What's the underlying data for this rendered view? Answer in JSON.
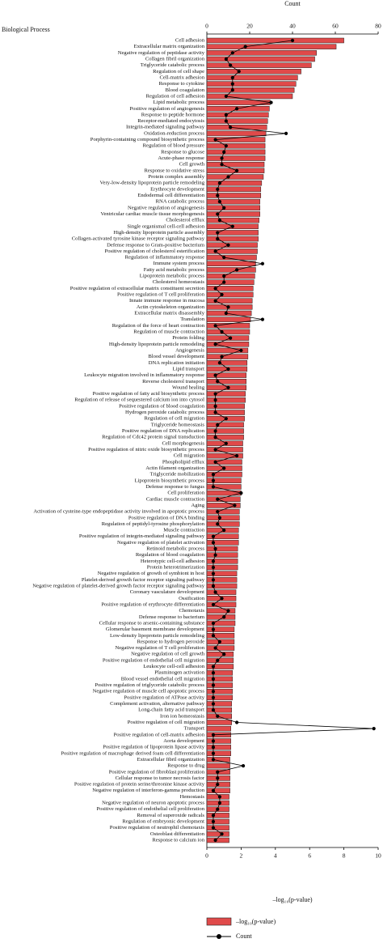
{
  "chart_data": {
    "type": "bar",
    "orientation": "horizontal",
    "ylabel": "Biological Process",
    "xlabel": "–log₁₀(p-value)",
    "x2label": "Count",
    "categories": [
      "Cell adhesion",
      "Extracellular matrix organization",
      "Negative regulation of peptidase activity",
      "Collagen fibril organization",
      "Triglyceride catabolic process",
      "Regulation of cell shape",
      "Cell-matrix adhesion",
      "Response to cytokine",
      "Blood coagulation",
      "Regulation of cell adhesion",
      "Lipid metabolic process",
      "Positive regulation of angiogenesis",
      "Response to peptide hormone",
      "Receptor-mediated endocytosis",
      "Integrin-mediated signaling pathway",
      "Oxidation-reduction process",
      "Porphyrin-containing compound biosynthetic process",
      "Regulation of blood pressure",
      "Response to glucose",
      "Acute-phase response",
      "Cell growth",
      "Response to oxidative stress",
      "Protein complex assembly",
      "Very-low-density lipoprotein particle remodeling",
      "Erythrocyte development",
      "Endodermal cell differentiation",
      "RNA catabolic process",
      "Negative regulation of angiogenesis",
      "Ventricular cardiac muscle tissue morphogenesis",
      "Cholesterol efflux",
      "Single organismal cell-cell adhesion",
      "High-density lipoprotein particle assembly",
      "Collagen-activated tyrosine kinase receptor signaling pathway",
      "Defense response to Gram-positive bacterium",
      "Positive regulation of cholesterol esterification",
      "Regulation of inflammatory response",
      "Immune system process",
      "Fatty acid metabolic process",
      "Lipoprotein metabolic process",
      "Cholesterol homeostasis",
      "Positive regulation of extracellular matrix constituent secretion",
      "Positive regulation of T cell proliferation",
      "Innate immune response in mucosa",
      "Actin cytoskeleton organization",
      "Extracellular matrix disassembly",
      "Translation",
      "Regulation of the force of heart contraction",
      "Regulation of muscle contraction",
      "Protein folding",
      "High-density lipoprotein particle remodeling",
      "Angiogenesis",
      "Blood vessel development",
      "DNA replication initiation",
      "Lipid transport",
      "Leukocyte migration involved in inflammatory response",
      "Reverse cholesterol transport",
      "Wound healing",
      "Positive regulation of fatty acid biosynthetic process",
      "Regulation of release of sequestered calcium ion into cytosol",
      "Positive regulation of blood coagulation",
      "Hydrogen peroxide catabolic process",
      "Regulation of cell migration",
      "Triglyceride homeostasis",
      "Positive regulation of DNA replication",
      "Regulation of Cdc42 protein signal transduction",
      "Cell morphogenesis",
      "Positive regulation of nitric oxide biosynthetic process",
      "Cell migration",
      "Phospholipid efflux",
      "Actin filament organization",
      "Triglyceride mobilization",
      "Lipoprotein biosynthetic process",
      "Defense response to fungus",
      "Cell proliferation",
      "Cardiac muscle contraction",
      "Aging",
      "Activation of cysteine-type endopeptidase activity involved in apoptotic process",
      "Positive regulation of DNA binding",
      "Regulation of peptidyl-tyrosine phosphorylation",
      "Muscle contraction",
      "Positive regulation of integrin-mediated signaling pathway",
      "Negative regulation of platelet activation",
      "Retinoid metabolic process",
      "Regulation of blood coagulation",
      "Heterotypic cell-cell adhesion",
      "Protein heterotrimerization",
      "Negative regulation of growth of symbiont in host",
      "Platelet-derived growth factor receptor signaling pathway",
      "Negative regulation of platelet-derived growth factor receptor signaling pathway",
      "Coronary vasculature development",
      "Ossification",
      "Positive regulation of erythrocyte differentiation",
      "Chemotaxis",
      "Defense response to bacterium",
      "Cellular response to arsenic-containing substance",
      "Glomerular basement membrane development",
      "Low-density lipoprotein particle remodeling",
      "Response to hydrogen peroxide",
      "Negative regulation of T cell proliferation",
      "Negative regulation of cell growth",
      "Positive regulation of endothelial cell migration",
      "Leukocyte cell-cell adhesion",
      "Plasminogen activation",
      "Blood vessel endothelial cell migration",
      "Positive regulation of triglyceride catabolic process",
      "Negative regulation of muscle cell apoptotic process",
      "Positive regulation of ATPase activity",
      "Complement activation, alternative pathway",
      "Long-chain fatty acid transport",
      "Iron ion homeostasis",
      "Positive regulation of cell migration",
      "Transport",
      "Positive regulation of cell-matrix adhesion",
      "Aorta development",
      "Positive regulation of lipoprotein lipase activity",
      "Positive regulation of macrophage derived foam cell differentiation",
      "Extracellular fibril organization",
      "Response to drug",
      "Positive regulation of fibroblast proliferation",
      "Cellular response to tumor necrosis factor",
      "Positive regulation of protein serine/threonine kinase activity",
      "Negative regulation of interferon-gamma production",
      "Hemostasis",
      "Negative regulation of neuron apoptotic process",
      "Positive regulation of endothelial cell proliferation",
      "Removal of superoxide radicals",
      "Regulation of embryonic development",
      "Positive regulation of neutrophil chemotaxis",
      "Osteoblast differentiation",
      "Response to calcium ion"
    ],
    "series": [
      {
        "name": "–log₁₀(p-value)",
        "color": "#e04a4a",
        "axis": "x",
        "values": [
          8.0,
          7.55,
          6.4,
          6.3,
          6.1,
          5.5,
          5.3,
          5.2,
          5.1,
          5.0,
          3.7,
          3.65,
          3.6,
          3.55,
          3.5,
          3.45,
          3.4,
          3.4,
          3.4,
          3.4,
          3.35,
          3.35,
          3.3,
          3.2,
          3.15,
          3.15,
          3.1,
          3.1,
          3.1,
          3.05,
          3.0,
          3.0,
          3.0,
          2.95,
          2.95,
          2.9,
          2.85,
          2.85,
          2.8,
          2.75,
          2.7,
          2.7,
          2.65,
          2.65,
          2.6,
          2.55,
          2.5,
          2.5,
          2.45,
          2.45,
          2.4,
          2.4,
          2.35,
          2.35,
          2.3,
          2.3,
          2.3,
          2.25,
          2.25,
          2.2,
          2.2,
          2.2,
          2.15,
          2.15,
          2.15,
          2.1,
          2.1,
          2.1,
          2.05,
          2.05,
          2.05,
          2.0,
          2.0,
          2.0,
          1.95,
          1.95,
          1.9,
          1.9,
          1.9,
          1.85,
          1.85,
          1.85,
          1.8,
          1.8,
          1.8,
          1.8,
          1.75,
          1.75,
          1.75,
          1.7,
          1.7,
          1.7,
          1.65,
          1.65,
          1.65,
          1.6,
          1.6,
          1.6,
          1.6,
          1.55,
          1.55,
          1.55,
          1.5,
          1.5,
          1.5,
          1.5,
          1.5,
          1.45,
          1.45,
          1.45,
          1.45,
          1.4,
          1.4,
          1.4,
          1.4,
          1.4,
          1.35,
          1.35,
          1.35,
          1.35,
          1.35,
          1.35,
          1.3,
          1.3,
          1.3,
          1.3,
          1.3,
          1.3,
          1.3,
          1.3
        ]
      },
      {
        "name": "Count",
        "color": "#000000",
        "axis": "x2",
        "values": [
          40,
          18,
          12,
          9,
          11,
          15,
          12,
          12,
          12,
          9,
          30,
          14,
          9,
          9,
          11,
          37,
          4,
          9,
          8,
          7,
          7,
          14,
          10,
          6,
          5,
          5,
          6,
          8,
          5,
          6,
          12,
          5,
          5,
          10,
          4,
          8,
          26,
          14,
          8,
          8,
          4,
          7,
          4,
          10,
          9,
          26,
          4,
          7,
          11,
          4,
          16,
          7,
          6,
          10,
          4,
          5,
          10,
          4,
          4,
          4,
          4,
          9,
          5,
          4,
          4,
          9,
          4,
          14,
          4,
          8,
          3,
          3,
          3,
          16,
          5,
          13,
          5,
          6,
          5,
          8,
          3,
          3,
          4,
          4,
          3,
          3,
          3,
          3,
          3,
          4,
          7,
          3,
          10,
          8,
          3,
          3,
          3,
          6,
          4,
          8,
          5,
          3,
          3,
          3,
          3,
          3,
          3,
          3,
          3,
          5,
          14,
          78,
          3,
          3,
          3,
          3,
          3,
          17,
          5,
          5,
          5,
          3,
          6,
          6,
          5,
          3,
          3,
          3,
          7,
          4
        ]
      }
    ],
    "xlim": [
      0,
      10
    ],
    "xticks": [
      0,
      2,
      4,
      6,
      8,
      10
    ],
    "x2lim": [
      0,
      80
    ],
    "x2ticks": [
      0,
      20,
      40,
      60,
      80
    ]
  }
}
